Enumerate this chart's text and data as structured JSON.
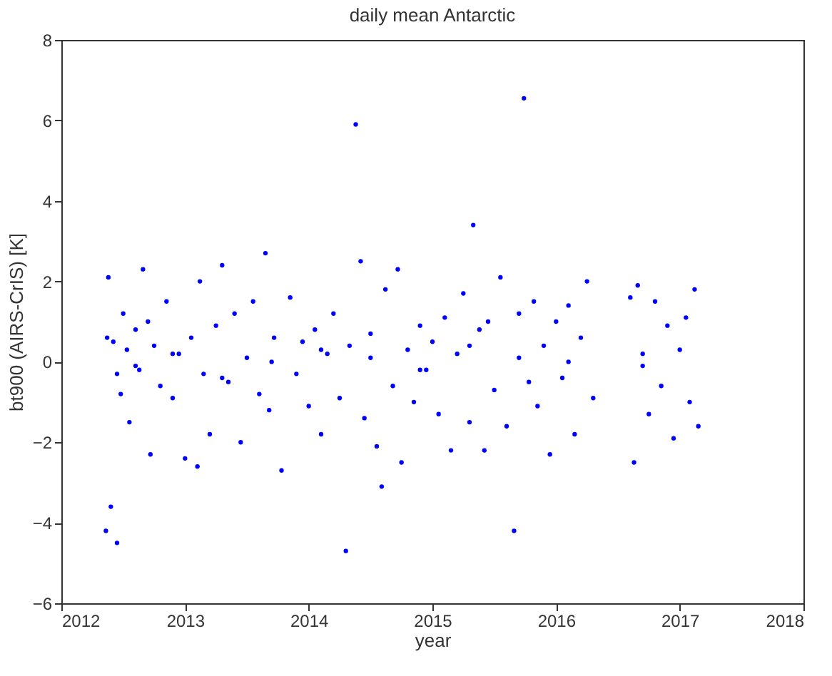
{
  "chart_data": {
    "type": "scatter",
    "title": "daily mean Antarctic",
    "xlabel": "year",
    "ylabel": "bt900 (AIRS-CrIS) [K]",
    "xlim": [
      2012,
      2018
    ],
    "xticks": [
      2012,
      2013,
      2014,
      2015,
      2016,
      2017,
      2018
    ],
    "ylim": [
      -6,
      8
    ],
    "yticks": [
      -6,
      -4,
      -2,
      0,
      2,
      4,
      6,
      8
    ],
    "grid": false,
    "marker": "circle",
    "series": [
      {
        "color": "#0000ff",
        "x": [
          2012.36,
          2012.38,
          2012.4,
          2012.42,
          2012.45,
          2012.48,
          2012.5,
          2012.53,
          2012.55,
          2012.6,
          2012.63,
          2012.66,
          2012.7,
          2012.72,
          2012.75,
          2012.8,
          2012.85,
          2012.9,
          2012.95,
          2013.0,
          2013.05,
          2013.1,
          2013.12,
          2013.15,
          2013.2,
          2013.25,
          2013.3,
          2013.35,
          2013.4,
          2013.45,
          2013.5,
          2013.55,
          2013.6,
          2013.65,
          2013.68,
          2013.72,
          2013.78,
          2013.85,
          2013.9,
          2013.95,
          2014.0,
          2014.05,
          2014.1,
          2014.15,
          2014.2,
          2014.25,
          2014.3,
          2014.33,
          2014.38,
          2014.42,
          2014.45,
          2014.5,
          2014.55,
          2014.59,
          2014.62,
          2014.68,
          2014.72,
          2014.75,
          2014.8,
          2014.85,
          2014.9,
          2014.95,
          2015.0,
          2015.05,
          2015.1,
          2015.15,
          2015.2,
          2015.25,
          2015.3,
          2015.33,
          2015.38,
          2015.42,
          2015.45,
          2015.5,
          2015.55,
          2015.6,
          2015.66,
          2015.7,
          2015.74,
          2015.78,
          2015.82,
          2015.85,
          2015.9,
          2015.95,
          2016.0,
          2016.05,
          2016.1,
          2016.15,
          2016.2,
          2016.25,
          2016.3,
          2016.6,
          2016.63,
          2016.66,
          2016.7,
          2016.75,
          2016.8,
          2016.85,
          2016.9,
          2016.95,
          2017.0,
          2017.05,
          2017.08,
          2017.12,
          2017.15,
          2012.37,
          2012.45,
          2012.6,
          2012.9,
          2013.3,
          2013.7,
          2014.1,
          2014.5,
          2014.9,
          2015.3,
          2015.7,
          2016.1,
          2016.7
        ],
        "values": [
          -4.2,
          2.1,
          -3.6,
          0.5,
          -4.5,
          -0.8,
          1.2,
          0.3,
          -1.5,
          0.8,
          -0.2,
          2.3,
          1.0,
          -2.3,
          0.4,
          -0.6,
          1.5,
          -0.9,
          0.2,
          -2.4,
          0.6,
          -2.6,
          2.0,
          -0.3,
          -1.8,
          0.9,
          2.4,
          -0.5,
          1.2,
          -2.0,
          0.1,
          1.5,
          -0.8,
          2.7,
          -1.2,
          0.6,
          -2.7,
          1.6,
          -0.3,
          0.5,
          -1.1,
          0.8,
          -1.8,
          0.2,
          1.2,
          -0.9,
          -4.7,
          0.4,
          5.9,
          2.5,
          -1.4,
          0.7,
          -2.1,
          -3.1,
          1.8,
          -0.6,
          2.3,
          -2.5,
          0.3,
          -1.0,
          0.9,
          -0.2,
          0.5,
          -1.3,
          1.1,
          -2.2,
          0.2,
          1.7,
          -1.5,
          3.4,
          0.8,
          -2.2,
          1.0,
          -0.7,
          2.1,
          -1.6,
          -4.2,
          1.2,
          6.55,
          -0.5,
          1.5,
          -1.1,
          0.4,
          -2.3,
          1.0,
          -0.4,
          1.4,
          -1.8,
          0.6,
          2.0,
          -0.9,
          1.6,
          -2.5,
          1.9,
          0.2,
          -1.3,
          1.5,
          -0.6,
          0.9,
          -1.9,
          0.3,
          1.1,
          -1.0,
          1.8,
          -1.6,
          0.6,
          -0.3,
          -0.1,
          0.2,
          -0.4,
          0.0,
          0.3,
          0.1,
          -0.2,
          0.4,
          0.1,
          0.0,
          -0.1
        ]
      }
    ]
  }
}
